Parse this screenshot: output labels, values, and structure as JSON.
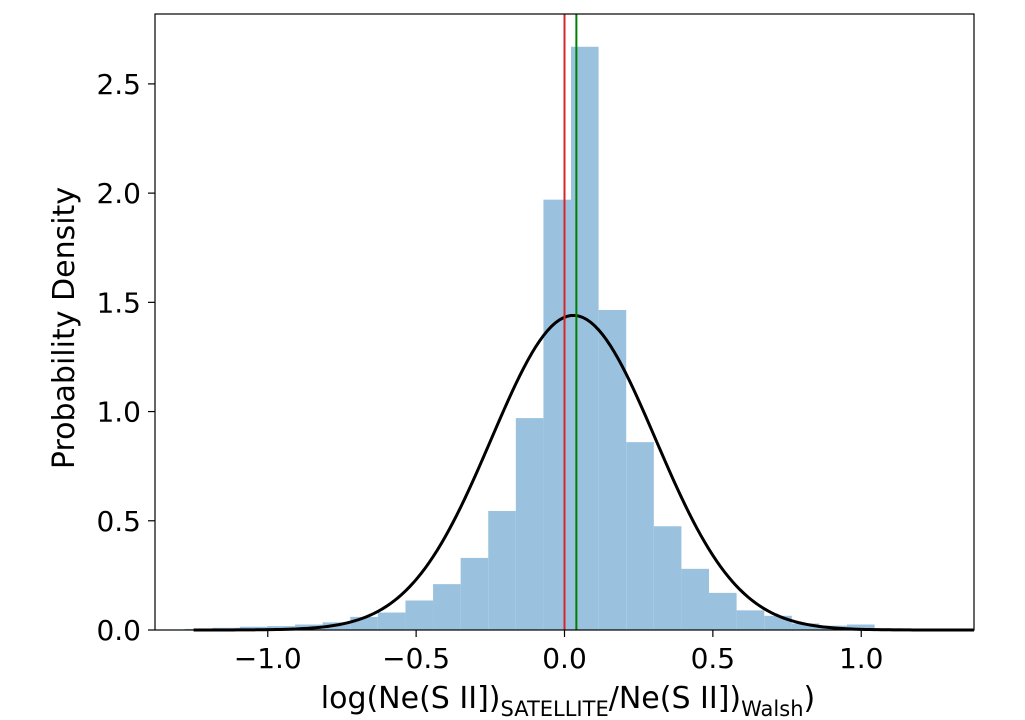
{
  "chart_data": {
    "type": "bar",
    "xlabel": "log(Ne(S II])SATELLITE/Ne(S II])Walsh)",
    "xlabel_parts": {
      "pre": "log(Ne(S II])",
      "sub1": "SATELLITE",
      "mid": "/Ne(S II])",
      "sub2": "Walsh",
      "post": ")"
    },
    "ylabel": "Probability Density",
    "xlim": [
      -1.38,
      1.38
    ],
    "ylim": [
      0,
      2.82
    ],
    "xticks": [
      -1.0,
      -0.5,
      0.0,
      0.5,
      1.0
    ],
    "xtick_labels": [
      "−1.0",
      "−0.5",
      "0.0",
      "0.5",
      "1.0"
    ],
    "yticks": [
      0.0,
      0.5,
      1.0,
      1.5,
      2.0,
      2.5
    ],
    "ytick_labels": [
      "0.0",
      "0.5",
      "1.0",
      "1.5",
      "2.0",
      "2.5"
    ],
    "histogram": {
      "color": "#9ac2df",
      "bin_edges": [
        -1.28,
        -1.187,
        -1.094,
        -1.001,
        -0.908,
        -0.815,
        -0.722,
        -0.629,
        -0.536,
        -0.443,
        -0.35,
        -0.257,
        -0.164,
        -0.071,
        0.022,
        0.115,
        0.208,
        0.301,
        0.394,
        0.487,
        0.58,
        0.673,
        0.766,
        0.859,
        0.952,
        1.045,
        1.138,
        1.231
      ],
      "densities": [
        0.005,
        0.01,
        0.015,
        0.018,
        0.025,
        0.035,
        0.06,
        0.08,
        0.135,
        0.21,
        0.33,
        0.545,
        0.97,
        1.97,
        2.67,
        1.465,
        0.86,
        0.475,
        0.28,
        0.17,
        0.09,
        0.065,
        0.03,
        0.02,
        0.025,
        0.008,
        0.004
      ]
    },
    "gaussian_fit": {
      "color": "#000000",
      "mean": 0.03,
      "sigma": 0.277,
      "x_range": [
        -1.25,
        1.4
      ]
    },
    "vertical_lines": [
      {
        "name": "zero",
        "x": 0.0,
        "color": "#d62728"
      },
      {
        "name": "mean",
        "x": 0.04,
        "color": "#008000"
      }
    ],
    "grid": false,
    "legend": "none"
  }
}
